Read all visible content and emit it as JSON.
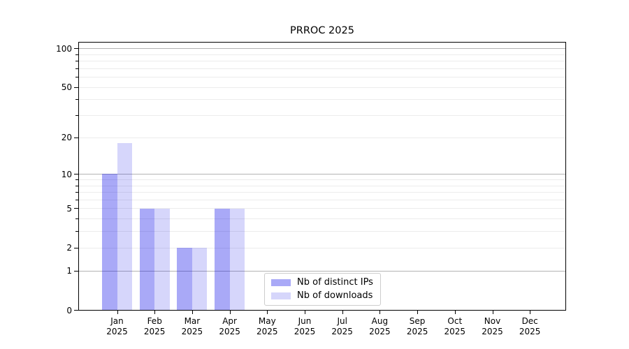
{
  "chart_data": {
    "type": "bar",
    "title": "PRROC 2025",
    "categories": [
      "Jan 2025",
      "Feb 2025",
      "Mar 2025",
      "Apr 2025",
      "May 2025",
      "Jun 2025",
      "Jul 2025",
      "Aug 2025",
      "Sep 2025",
      "Oct 2025",
      "Nov 2025",
      "Dec 2025"
    ],
    "series": [
      {
        "name": "Nb of distinct IPs",
        "values": [
          10,
          5,
          2,
          5,
          0,
          0,
          0,
          0,
          0,
          0,
          0,
          0
        ],
        "color": "rgba(10,10,232,0.35)"
      },
      {
        "name": "Nb of downloads",
        "values": [
          18,
          5,
          2,
          5,
          0,
          0,
          0,
          0,
          0,
          0,
          0,
          0
        ],
        "color": "rgba(10,10,232,0.17)"
      }
    ],
    "xlabel": "",
    "ylabel": "",
    "y_scale": "log1p",
    "ylim": [
      0,
      113
    ],
    "y_ticks": [
      0,
      1,
      2,
      5,
      10,
      20,
      50,
      100
    ],
    "y_major_gridlines": [
      1,
      10,
      100
    ],
    "y_minor_gridlines": [
      2,
      3,
      4,
      5,
      6,
      7,
      8,
      9,
      20,
      30,
      40,
      50,
      60,
      70,
      80,
      90
    ],
    "grid": "on",
    "legend_position": "lower center"
  },
  "colors": {
    "grid_major": "#b3b3b3",
    "grid_minor": "#ececec",
    "spine": "#000000",
    "background": "#ffffff"
  }
}
